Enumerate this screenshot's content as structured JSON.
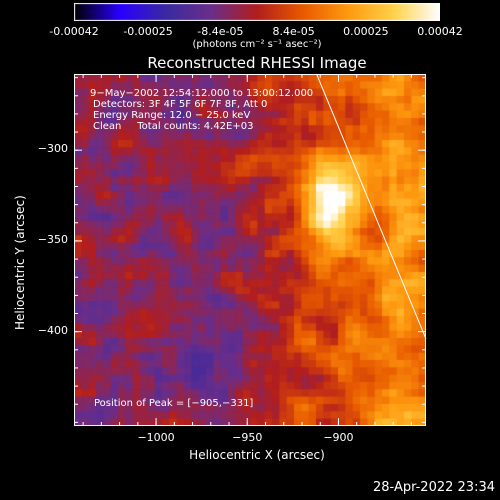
{
  "colorbar": {
    "colormap": [
      "#000000",
      "#2a00ff",
      "#3a2aa0",
      "#6a2e8a",
      "#b21e1e",
      "#e85a00",
      "#ff9a10",
      "#ffd24a",
      "#ffffff"
    ],
    "ticks": [
      "-0.00042",
      "-0.00025",
      "-8.4e-05",
      "8.4e-05",
      "0.00025",
      "0.00042"
    ],
    "tick_values": [
      -0.00042,
      -0.00025,
      -8.4e-05,
      8.4e-05,
      0.00025,
      0.00042
    ],
    "units": "(photons cm⁻² s⁻¹ asec⁻²)"
  },
  "plot": {
    "title": "Reconstructed RHESSI Image",
    "x_title": "Heliocentric X (arcsec)",
    "y_title": "Heliocentric Y (arcsec)",
    "x_range": [
      -1045,
      -852
    ],
    "y_range": [
      -452,
      -258
    ],
    "x_ticks": [
      {
        "value": -1000,
        "label": "−1000"
      },
      {
        "value": -950,
        "label": "−950"
      },
      {
        "value": -900,
        "label": "−900"
      }
    ],
    "y_ticks": [
      {
        "value": -300,
        "label": "−300"
      },
      {
        "value": -350,
        "label": "−350"
      },
      {
        "value": -400,
        "label": "−400"
      }
    ],
    "annotations": [
      "9−May−2002 12:54:12.000 to 13:00:12.000",
      "Detectors: 3F 4F 5F 6F 7F 8F, Att 0",
      "Energy Range: 12.0 − 25.0 keV",
      "Clean     Total counts: 4.42E+03"
    ],
    "peak_label": "Position of Peak = [−905,−331]",
    "peak_value": [
      -905,
      -331
    ],
    "limb_line": {
      "x": [
        -912,
        -852
      ],
      "y": [
        -258,
        -404
      ]
    }
  },
  "footer": {
    "timestamp": "28-Apr-2022 23:34"
  }
}
